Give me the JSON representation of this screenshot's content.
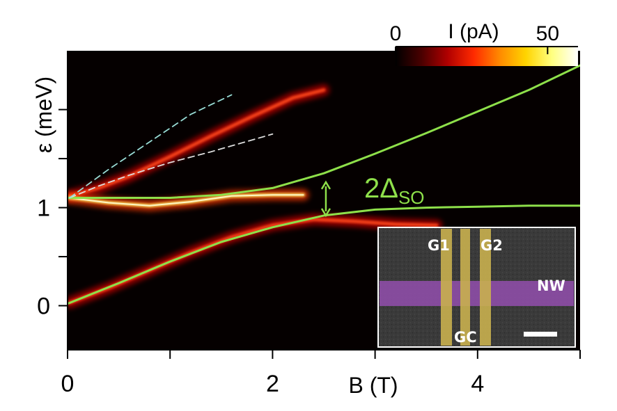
{
  "chart_data": {
    "type": "heatmap",
    "title": "",
    "xlabel": "B (T)",
    "ylabel": "ε (meV)",
    "xlim": [
      0,
      5
    ],
    "ylim": [
      -0.45,
      2.6
    ],
    "x_ticks": [
      0,
      1,
      2,
      3,
      4,
      5
    ],
    "x_tick_labels": [
      {
        "value": 0,
        "label": "0"
      },
      {
        "value": 2,
        "label": "2"
      },
      {
        "value": 4,
        "label": "4"
      }
    ],
    "y_ticks": [
      0,
      0.5,
      1,
      1.5,
      2
    ],
    "y_tick_labels": [
      {
        "value": 0,
        "label": "0"
      },
      {
        "value": 1,
        "label": "1"
      }
    ],
    "colorbar": {
      "label": "I (pA)",
      "range": [
        0,
        60
      ],
      "tick_labels": [
        {
          "value": 0,
          "label": "0"
        },
        {
          "value": 50,
          "label": "50"
        }
      ],
      "colors": [
        "#000000",
        "#4a0000",
        "#b00000",
        "#ff2a00",
        "#ff8a00",
        "#ffd400",
        "#ffff80",
        "#ffffff"
      ]
    },
    "intensity_bands": [
      {
        "points": [
          [
            0.02,
            1.12
          ],
          [
            0.3,
            1.2
          ],
          [
            0.6,
            1.32
          ],
          [
            1.0,
            1.52
          ],
          [
            1.4,
            1.73
          ],
          [
            1.8,
            1.93
          ],
          [
            2.2,
            2.12
          ],
          [
            2.5,
            2.2
          ]
        ],
        "current_pA": 22
      },
      {
        "points": [
          [
            0.02,
            1.1
          ],
          [
            0.4,
            1.05
          ],
          [
            0.8,
            1.02
          ],
          [
            1.2,
            1.06
          ],
          [
            1.6,
            1.12
          ],
          [
            2.0,
            1.13
          ],
          [
            2.3,
            1.13
          ]
        ],
        "current_pA": 45
      },
      {
        "points": [
          [
            0.02,
            0.03
          ],
          [
            0.4,
            0.18
          ],
          [
            0.8,
            0.36
          ],
          [
            1.2,
            0.54
          ],
          [
            1.6,
            0.7
          ],
          [
            2.0,
            0.82
          ],
          [
            2.4,
            0.88
          ],
          [
            2.8,
            0.86
          ],
          [
            3.2,
            0.83
          ],
          [
            3.6,
            0.82
          ]
        ],
        "current_pA": 30
      }
    ],
    "series": [
      {
        "style": "solid",
        "color": "#8ee04a",
        "points": [
          [
            0,
            1.1
          ],
          [
            0.5,
            1.1
          ],
          [
            1,
            1.1
          ],
          [
            1.5,
            1.13
          ],
          [
            2,
            1.2
          ],
          [
            2.5,
            1.35
          ],
          [
            3,
            1.55
          ],
          [
            3.5,
            1.76
          ],
          [
            4,
            1.98
          ],
          [
            4.5,
            2.2
          ],
          [
            5,
            2.45
          ]
        ]
      },
      {
        "style": "solid",
        "color": "#8ee04a",
        "points": [
          [
            0,
            0.02
          ],
          [
            0.5,
            0.23
          ],
          [
            1,
            0.45
          ],
          [
            1.5,
            0.65
          ],
          [
            2,
            0.8
          ],
          [
            2.5,
            0.92
          ],
          [
            3,
            0.98
          ],
          [
            3.5,
            1.0
          ],
          [
            4,
            1.01
          ],
          [
            4.5,
            1.02
          ],
          [
            5,
            1.02
          ]
        ]
      },
      {
        "style": "dashed",
        "color": "#dddddd",
        "points": [
          [
            0.02,
            1.1
          ],
          [
            0.3,
            1.22
          ],
          [
            0.6,
            1.33
          ],
          [
            1.0,
            1.46
          ],
          [
            1.4,
            1.57
          ],
          [
            1.7,
            1.66
          ],
          [
            2.0,
            1.75
          ]
        ]
      },
      {
        "style": "dashed",
        "color": "#99ddd6",
        "points": [
          [
            0.02,
            1.1
          ],
          [
            0.4,
            1.39
          ],
          [
            0.8,
            1.67
          ],
          [
            1.2,
            1.95
          ],
          [
            1.6,
            2.15
          ]
        ]
      }
    ],
    "annotations": [
      {
        "text": "2Δ",
        "subscript": "SO",
        "arrow_x": 2.52,
        "arrow_y": [
          0.92,
          1.26
        ]
      }
    ],
    "inset": {
      "labels": [
        "G1",
        "G2",
        "NW",
        "GC"
      ],
      "colors": {
        "background": "#353535",
        "gates": "#c9b04f",
        "nanowire": "#8e4ea7",
        "scale_bar": "#ffffff"
      }
    }
  }
}
